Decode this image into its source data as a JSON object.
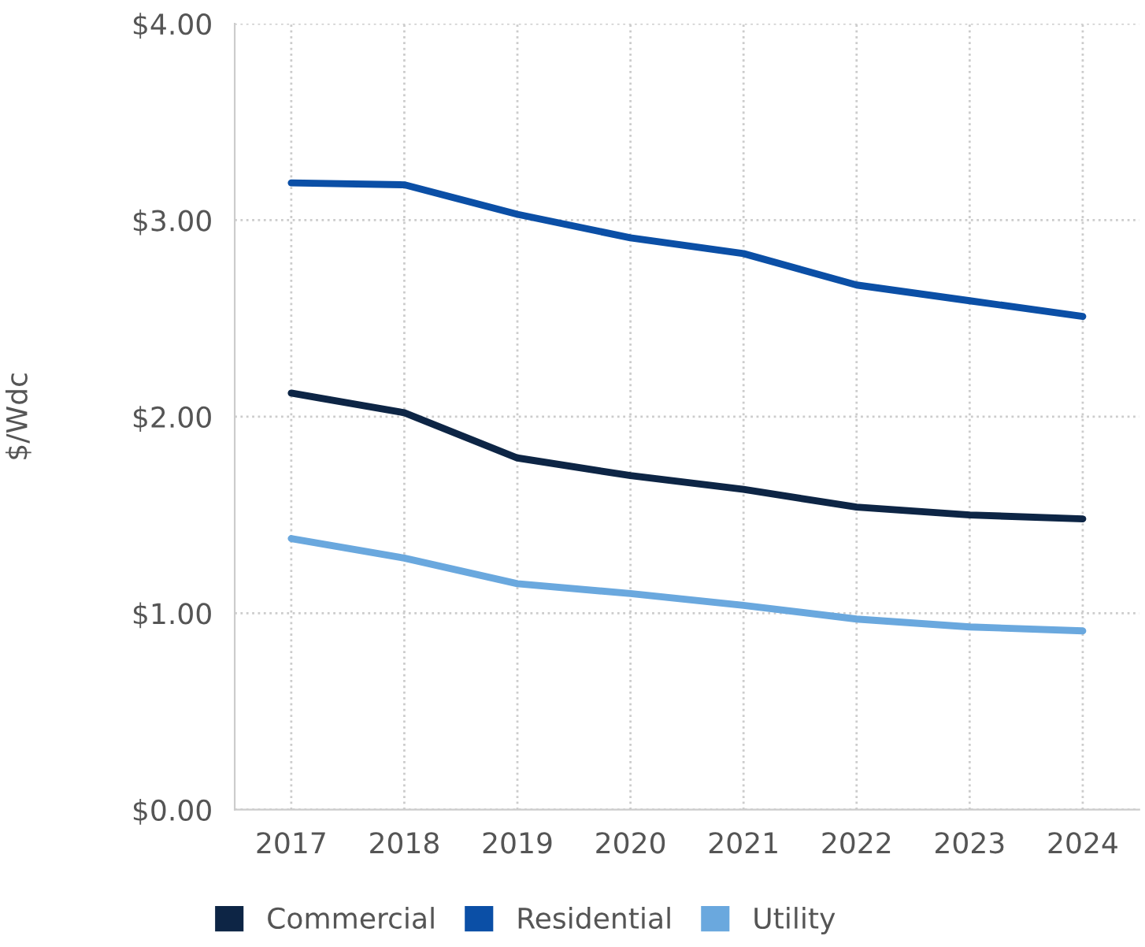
{
  "chart_data": {
    "type": "line",
    "ylabel": "$/Wdc",
    "categories": [
      "2017",
      "2018",
      "2019",
      "2020",
      "2021",
      "2022",
      "2023",
      "2024"
    ],
    "series": [
      {
        "name": "Commercial",
        "color": "#0d2545",
        "values": [
          2.12,
          2.02,
          1.79,
          1.7,
          1.63,
          1.54,
          1.5,
          1.48
        ]
      },
      {
        "name": "Residential",
        "color": "#0b4fa6",
        "values": [
          3.19,
          3.18,
          3.03,
          2.91,
          2.83,
          2.67,
          2.59,
          2.51
        ]
      },
      {
        "name": "Utility",
        "color": "#6aa8de",
        "values": [
          1.38,
          1.28,
          1.15,
          1.1,
          1.04,
          0.97,
          0.93,
          0.91
        ]
      }
    ],
    "ylim": [
      0,
      4
    ],
    "yticks": [
      {
        "value": 0,
        "label": "$0.00"
      },
      {
        "value": 1,
        "label": "$1.00"
      },
      {
        "value": 2,
        "label": "$2.00"
      },
      {
        "value": 3,
        "label": "$3.00"
      },
      {
        "value": 4,
        "label": "$4.00"
      }
    ],
    "grid": true,
    "legend": "bottom",
    "marker": "none",
    "line_style": "solid"
  }
}
